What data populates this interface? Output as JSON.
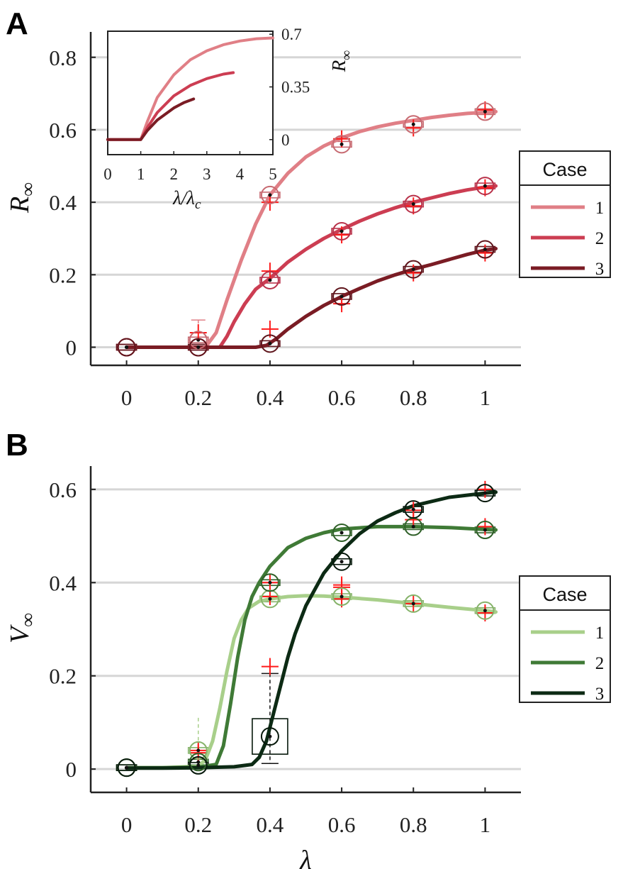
{
  "panels": {
    "A": {
      "letter": "A"
    },
    "B": {
      "letter": "B"
    }
  },
  "legend": {
    "title": "Case",
    "entries": [
      "1",
      "2",
      "3"
    ]
  },
  "chart_data": [
    {
      "id": "A",
      "type": "line",
      "xlabel": "",
      "ylabel": "R∞",
      "xlim": [
        -0.1,
        1.1
      ],
      "ylim": [
        -0.05,
        0.87
      ],
      "xticks": [
        "0",
        "0.2",
        "0.4",
        "0.6",
        "0.8",
        "1"
      ],
      "xtick_values": [
        0,
        0.2,
        0.4,
        0.6,
        0.8,
        1
      ],
      "yticks": [
        "0",
        "0.2",
        "0.4",
        "0.6",
        "0.8"
      ],
      "ytick_values": [
        0,
        0.2,
        0.4,
        0.6,
        0.8
      ],
      "grid": "horizontal",
      "legend_position": "right",
      "series": [
        {
          "name": "1",
          "color": "#e07f86",
          "dark": "#c76a71",
          "curve_x": [
            0,
            0.1,
            0.2,
            0.22,
            0.25,
            0.28,
            0.32,
            0.36,
            0.4,
            0.45,
            0.5,
            0.55,
            0.6,
            0.65,
            0.7,
            0.75,
            0.8,
            0.85,
            0.9,
            0.95,
            1.0,
            1.03
          ],
          "curve_y": [
            0,
            0,
            0,
            0,
            0.04,
            0.13,
            0.24,
            0.34,
            0.42,
            0.48,
            0.525,
            0.555,
            0.578,
            0.595,
            0.608,
            0.618,
            0.626,
            0.634,
            0.64,
            0.645,
            0.648,
            0.65
          ],
          "circles_x": [
            0,
            0.2,
            0.4,
            0.6,
            0.8,
            1.0
          ],
          "circles_y": [
            0,
            0.02,
            0.42,
            0.56,
            0.615,
            0.65
          ],
          "crosses_x": [
            0.2,
            0.4,
            0.6,
            0.8,
            1.0
          ],
          "crosses_y": [
            0.04,
            0.4,
            0.575,
            0.605,
            0.655
          ]
        },
        {
          "name": "2",
          "color": "#cc3d52",
          "dark": "#b8324a",
          "curve_x": [
            0,
            0.1,
            0.2,
            0.25,
            0.26,
            0.28,
            0.3,
            0.33,
            0.36,
            0.4,
            0.45,
            0.5,
            0.55,
            0.6,
            0.65,
            0.7,
            0.75,
            0.8,
            0.85,
            0.9,
            0.95,
            1.0,
            1.03
          ],
          "curve_y": [
            0,
            0,
            0,
            0,
            0,
            0.03,
            0.07,
            0.12,
            0.16,
            0.19,
            0.235,
            0.27,
            0.3,
            0.325,
            0.348,
            0.368,
            0.385,
            0.4,
            0.412,
            0.424,
            0.434,
            0.442,
            0.445
          ],
          "circles_x": [
            0,
            0.2,
            0.4,
            0.6,
            0.8,
            1.0
          ],
          "circles_y": [
            0,
            0,
            0.185,
            0.32,
            0.395,
            0.445
          ],
          "crosses_x": [
            0.4,
            0.6,
            0.8,
            1.0
          ],
          "crosses_y": [
            0.21,
            0.31,
            0.39,
            0.44
          ]
        },
        {
          "name": "3",
          "color": "#7a1c24",
          "dark": "#5e141b",
          "curve_x": [
            0,
            0.1,
            0.2,
            0.3,
            0.36,
            0.39,
            0.42,
            0.45,
            0.5,
            0.55,
            0.6,
            0.65,
            0.7,
            0.75,
            0.8,
            0.85,
            0.9,
            0.95,
            1.0,
            1.03
          ],
          "curve_y": [
            0,
            0,
            0,
            0,
            0,
            0.005,
            0.025,
            0.05,
            0.085,
            0.115,
            0.14,
            0.162,
            0.183,
            0.2,
            0.215,
            0.228,
            0.242,
            0.256,
            0.268,
            0.272
          ],
          "circles_x": [
            0,
            0.2,
            0.4,
            0.6,
            0.8,
            1.0
          ],
          "circles_y": [
            0,
            0,
            0.01,
            0.14,
            0.215,
            0.27
          ],
          "crosses_x": [
            0.4,
            0.6,
            0.8,
            1.0
          ],
          "crosses_y": [
            0.05,
            0.12,
            0.205,
            0.26
          ]
        }
      ],
      "inset": {
        "type": "line",
        "xlabel": "λ/λc",
        "ylabel": "R∞",
        "xlim": [
          0,
          5
        ],
        "ylim": [
          -0.1,
          0.72
        ],
        "xticks": [
          "0",
          "1",
          "2",
          "3",
          "4",
          "5"
        ],
        "xtick_values": [
          0,
          1,
          2,
          3,
          4,
          5
        ],
        "yticks": [
          "0",
          "0.35",
          "0.7"
        ],
        "ytick_values": [
          0,
          0.35,
          0.7
        ],
        "series": [
          {
            "name": "1",
            "x": [
              0,
              0.5,
              1,
              1.2,
              1.5,
              2,
              2.5,
              3,
              3.5,
              4,
              4.5,
              5
            ],
            "y": [
              0,
              0,
              0,
              0.12,
              0.28,
              0.43,
              0.53,
              0.59,
              0.63,
              0.655,
              0.67,
              0.675
            ]
          },
          {
            "name": "2",
            "x": [
              0,
              0.5,
              1,
              1.2,
              1.5,
              2,
              2.5,
              3,
              3.5,
              3.8
            ],
            "y": [
              0,
              0,
              0,
              0.08,
              0.18,
              0.29,
              0.36,
              0.405,
              0.435,
              0.445
            ]
          },
          {
            "name": "3",
            "x": [
              0,
              0.5,
              1,
              1.2,
              1.5,
              2,
              2.3,
              2.6
            ],
            "y": [
              0,
              0,
              0,
              0.06,
              0.13,
              0.21,
              0.245,
              0.27
            ]
          }
        ]
      }
    },
    {
      "id": "B",
      "type": "line",
      "xlabel": "λ",
      "ylabel": "V∞",
      "xlim": [
        -0.1,
        1.1
      ],
      "ylim": [
        -0.05,
        0.65
      ],
      "xticks": [
        "0",
        "0.2",
        "0.4",
        "0.6",
        "0.8",
        "1"
      ],
      "xtick_values": [
        0,
        0.2,
        0.4,
        0.6,
        0.8,
        1
      ],
      "yticks": [
        "0",
        "0.2",
        "0.4",
        "0.6"
      ],
      "ytick_values": [
        0,
        0.2,
        0.4,
        0.6
      ],
      "grid": "horizontal",
      "legend_position": "right",
      "series": [
        {
          "name": "1",
          "color": "#a8cf8a",
          "dark": "#86b36a",
          "curve_x": [
            0,
            0.1,
            0.2,
            0.22,
            0.24,
            0.26,
            0.28,
            0.3,
            0.32,
            0.34,
            0.37,
            0.4,
            0.45,
            0.5,
            0.55,
            0.6,
            0.7,
            0.8,
            0.9,
            1.0,
            1.03
          ],
          "curve_y": [
            0.003,
            0.003,
            0.006,
            0.02,
            0.06,
            0.13,
            0.21,
            0.28,
            0.32,
            0.345,
            0.36,
            0.365,
            0.37,
            0.372,
            0.371,
            0.369,
            0.363,
            0.355,
            0.347,
            0.34,
            0.337
          ],
          "circles_x": [
            0,
            0.2,
            0.4,
            0.6,
            0.8,
            1.0
          ],
          "circles_y": [
            0.003,
            0.04,
            0.365,
            0.37,
            0.355,
            0.34
          ],
          "crosses_x": [
            0.2,
            0.4,
            0.6,
            0.8,
            1.0
          ],
          "crosses_y": [
            0.04,
            0.37,
            0.365,
            0.355,
            0.335
          ]
        },
        {
          "name": "2",
          "color": "#3f7a36",
          "dark": "#2f6028",
          "curve_x": [
            0,
            0.1,
            0.2,
            0.25,
            0.27,
            0.29,
            0.31,
            0.33,
            0.35,
            0.37,
            0.4,
            0.45,
            0.5,
            0.55,
            0.6,
            0.7,
            0.8,
            0.9,
            1.0,
            1.03
          ],
          "curve_y": [
            0.003,
            0.003,
            0.004,
            0.01,
            0.05,
            0.14,
            0.24,
            0.32,
            0.37,
            0.4,
            0.435,
            0.475,
            0.495,
            0.507,
            0.515,
            0.52,
            0.52,
            0.518,
            0.514,
            0.513
          ],
          "circles_x": [
            0,
            0.2,
            0.4,
            0.6,
            0.8,
            1.0
          ],
          "circles_y": [
            0.003,
            0.015,
            0.4,
            0.507,
            0.52,
            0.513
          ],
          "crosses_x": [
            0.2,
            0.4,
            0.6,
            0.8,
            1.0
          ],
          "crosses_y": [
            0.035,
            0.4,
            0.395,
            0.535,
            0.52
          ]
        },
        {
          "name": "3",
          "color": "#0c2a14",
          "dark": "#06180b",
          "curve_x": [
            0,
            0.1,
            0.2,
            0.3,
            0.35,
            0.37,
            0.39,
            0.41,
            0.43,
            0.45,
            0.47,
            0.5,
            0.55,
            0.6,
            0.65,
            0.7,
            0.75,
            0.8,
            0.9,
            1.0,
            1.03
          ],
          "curve_y": [
            0.002,
            0.002,
            0.003,
            0.005,
            0.01,
            0.025,
            0.06,
            0.12,
            0.18,
            0.24,
            0.29,
            0.35,
            0.42,
            0.468,
            0.505,
            0.532,
            0.55,
            0.565,
            0.583,
            0.592,
            0.594
          ],
          "circles_x": [
            0,
            0.2,
            0.4,
            0.6,
            0.8,
            1.0
          ],
          "circles_y": [
            0.003,
            0.008,
            0.07,
            0.445,
            0.557,
            0.592
          ],
          "crosses_x": [
            0.4,
            0.6,
            0.8,
            1.0
          ],
          "crosses_y": [
            0.22,
            0.39,
            0.555,
            0.6
          ]
        }
      ]
    }
  ]
}
